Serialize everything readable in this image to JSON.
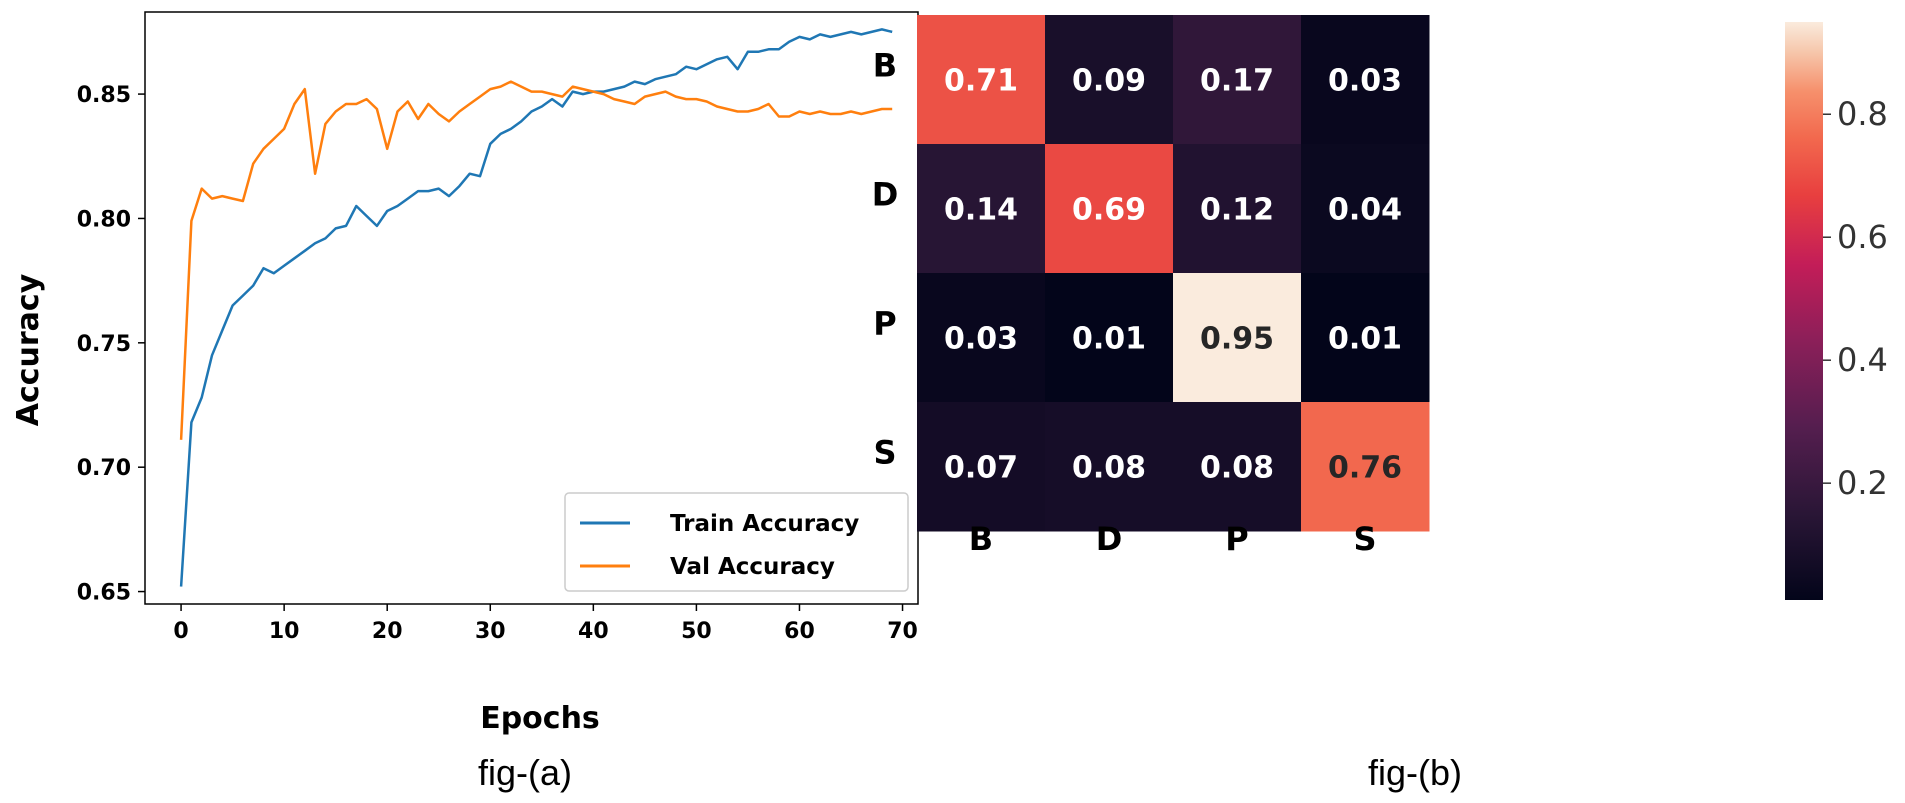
{
  "chart_data": [
    {
      "type": "line",
      "title": "",
      "xlabel": "Epochs",
      "ylabel": "Accuracy",
      "caption": "fig-(a)",
      "xlim": [
        -3.5,
        71.5
      ],
      "ylim": [
        0.645,
        0.883
      ],
      "xticks": [
        "0",
        "10",
        "20",
        "30",
        "40",
        "50",
        "60",
        "70"
      ],
      "yticks": [
        "0.65",
        "0.70",
        "0.75",
        "0.80",
        "0.85"
      ],
      "legend_position": "lower-right",
      "x": [
        0,
        1,
        2,
        3,
        4,
        5,
        6,
        7,
        8,
        9,
        10,
        11,
        12,
        13,
        14,
        15,
        16,
        17,
        18,
        19,
        20,
        21,
        22,
        23,
        24,
        25,
        26,
        27,
        28,
        29,
        30,
        31,
        32,
        33,
        34,
        35,
        36,
        37,
        38,
        39,
        40,
        41,
        42,
        43,
        44,
        45,
        46,
        47,
        48,
        49,
        50,
        51,
        52,
        53,
        54,
        55,
        56,
        57,
        58,
        59,
        60,
        61,
        62,
        63,
        64,
        65,
        66,
        67,
        68,
        69
      ],
      "series": [
        {
          "name": "Train Accuracy",
          "color": "#1f77b4",
          "values": [
            0.652,
            0.718,
            0.728,
            0.745,
            0.755,
            0.765,
            0.769,
            0.773,
            0.78,
            0.778,
            0.781,
            0.784,
            0.787,
            0.79,
            0.792,
            0.796,
            0.797,
            0.805,
            0.801,
            0.797,
            0.803,
            0.805,
            0.808,
            0.811,
            0.811,
            0.812,
            0.809,
            0.813,
            0.818,
            0.817,
            0.83,
            0.834,
            0.836,
            0.839,
            0.843,
            0.845,
            0.848,
            0.845,
            0.851,
            0.85,
            0.851,
            0.851,
            0.852,
            0.853,
            0.855,
            0.854,
            0.856,
            0.857,
            0.858,
            0.861,
            0.86,
            0.862,
            0.864,
            0.865,
            0.86,
            0.867,
            0.867,
            0.868,
            0.868,
            0.871,
            0.873,
            0.872,
            0.874,
            0.873,
            0.874,
            0.875,
            0.874,
            0.875,
            0.876,
            0.875
          ]
        },
        {
          "name": "Val Accuracy",
          "color": "#ff7f0e",
          "values": [
            0.711,
            0.799,
            0.812,
            0.808,
            0.809,
            0.808,
            0.807,
            0.822,
            0.828,
            0.832,
            0.836,
            0.846,
            0.852,
            0.818,
            0.838,
            0.843,
            0.846,
            0.846,
            0.848,
            0.844,
            0.828,
            0.843,
            0.847,
            0.84,
            0.846,
            0.842,
            0.839,
            0.843,
            0.846,
            0.849,
            0.852,
            0.853,
            0.855,
            0.853,
            0.851,
            0.851,
            0.85,
            0.849,
            0.853,
            0.852,
            0.851,
            0.85,
            0.848,
            0.847,
            0.846,
            0.849,
            0.85,
            0.851,
            0.849,
            0.848,
            0.848,
            0.847,
            0.845,
            0.844,
            0.843,
            0.843,
            0.844,
            0.846,
            0.841,
            0.841,
            0.843,
            0.842,
            0.843,
            0.842,
            0.842,
            0.843,
            0.842,
            0.843,
            0.844,
            0.844
          ]
        }
      ]
    },
    {
      "type": "heatmap",
      "caption": "fig-(b)",
      "row_labels": [
        "B",
        "D",
        "P",
        "S"
      ],
      "col_labels": [
        "B",
        "D",
        "P",
        "S"
      ],
      "values": [
        [
          0.71,
          0.09,
          0.17,
          0.03
        ],
        [
          0.14,
          0.69,
          0.12,
          0.04
        ],
        [
          0.03,
          0.01,
          0.95,
          0.01
        ],
        [
          0.07,
          0.08,
          0.08,
          0.76
        ]
      ],
      "value_labels": [
        [
          "0.71",
          "0.09",
          "0.17",
          "0.03"
        ],
        [
          "0.14",
          "0.69",
          "0.12",
          "0.04"
        ],
        [
          "0.03",
          "0.01",
          "0.95",
          "0.01"
        ],
        [
          "0.07",
          "0.08",
          "0.08",
          "0.76"
        ]
      ],
      "colormap": "rocket",
      "vmin": 0.01,
      "vmax": 0.95,
      "colorbar_ticks": [
        0.2,
        0.4,
        0.6,
        0.8
      ],
      "colorbar_tick_labels": [
        "0.2",
        "0.4",
        "0.6",
        "0.8"
      ]
    }
  ]
}
